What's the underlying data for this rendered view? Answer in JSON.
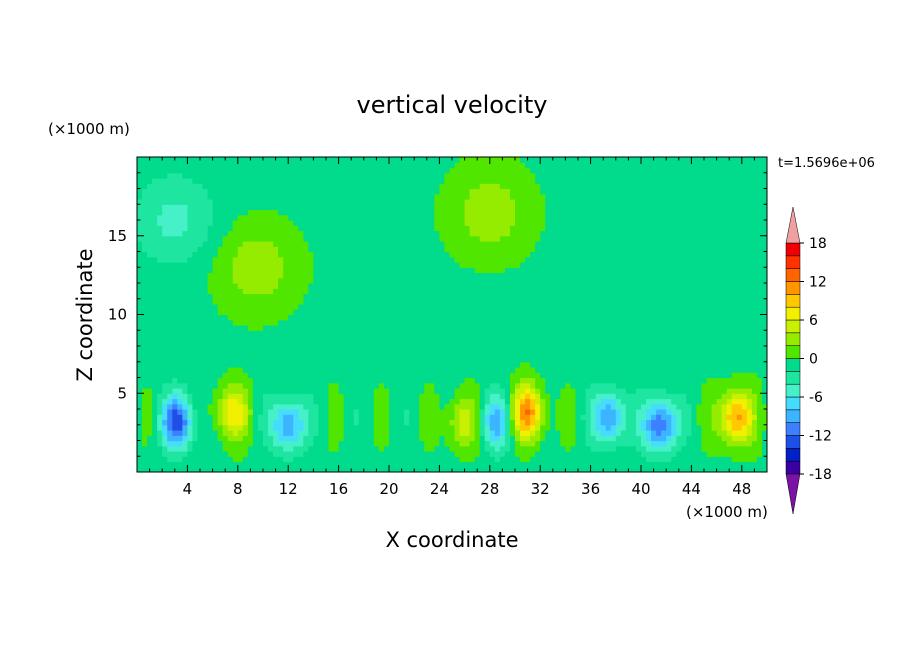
{
  "chart_data": {
    "type": "heatmap",
    "title": "vertical velocity",
    "xlabel": "X coordinate",
    "ylabel": "Z coordinate",
    "x_unit": "(×1000 m)",
    "y_unit": "(×1000 m)",
    "time_label": "t=1.5696e+06",
    "xlim": [
      0,
      50
    ],
    "ylim": [
      0,
      20
    ],
    "x_ticks": [
      4,
      8,
      12,
      16,
      20,
      24,
      28,
      32,
      36,
      40,
      44,
      48
    ],
    "y_ticks": [
      5,
      10,
      15
    ],
    "colorbar": {
      "levels": [
        -20,
        -18,
        -16,
        -14,
        -12,
        -10,
        -8,
        -6,
        -4,
        -2,
        0,
        2,
        4,
        6,
        8,
        10,
        12,
        14,
        16,
        18,
        20
      ],
      "tick_labels": [
        "18",
        "12",
        "6",
        "0",
        "-6",
        "-12",
        "-18"
      ],
      "tick_values": [
        18,
        12,
        6,
        0,
        -6,
        -12,
        -18
      ],
      "colors": [
        "#7a12a6",
        "#3a00a0",
        "#0020c8",
        "#1e50e8",
        "#3c80ff",
        "#3cb4ff",
        "#46dcff",
        "#46f0c8",
        "#1ee6a0",
        "#00dc8c",
        "#50e600",
        "#96ec00",
        "#c8f000",
        "#f0f000",
        "#ffc800",
        "#ff9600",
        "#ff6400",
        "#ff3200",
        "#f00000",
        "#f0a0a0"
      ]
    },
    "features": [
      {
        "x": 3.2,
        "z": 3.2,
        "value": -12
      },
      {
        "x": 7.5,
        "z": 3.8,
        "value": 8
      },
      {
        "x": 12.0,
        "z": 3.0,
        "value": -10
      },
      {
        "x": 25.8,
        "z": 3.2,
        "value": 6
      },
      {
        "x": 28.5,
        "z": 3.2,
        "value": -8
      },
      {
        "x": 31.0,
        "z": 3.8,
        "value": 12
      },
      {
        "x": 37.5,
        "z": 3.5,
        "value": -10
      },
      {
        "x": 41.5,
        "z": 3.0,
        "value": -12
      },
      {
        "x": 47.5,
        "z": 3.5,
        "value": 12
      },
      {
        "x": 9.5,
        "z": 13.0,
        "value": 4
      },
      {
        "x": 28.0,
        "z": 16.5,
        "value": 4
      },
      {
        "x": 3.0,
        "z": 16.0,
        "value": -4
      }
    ]
  }
}
